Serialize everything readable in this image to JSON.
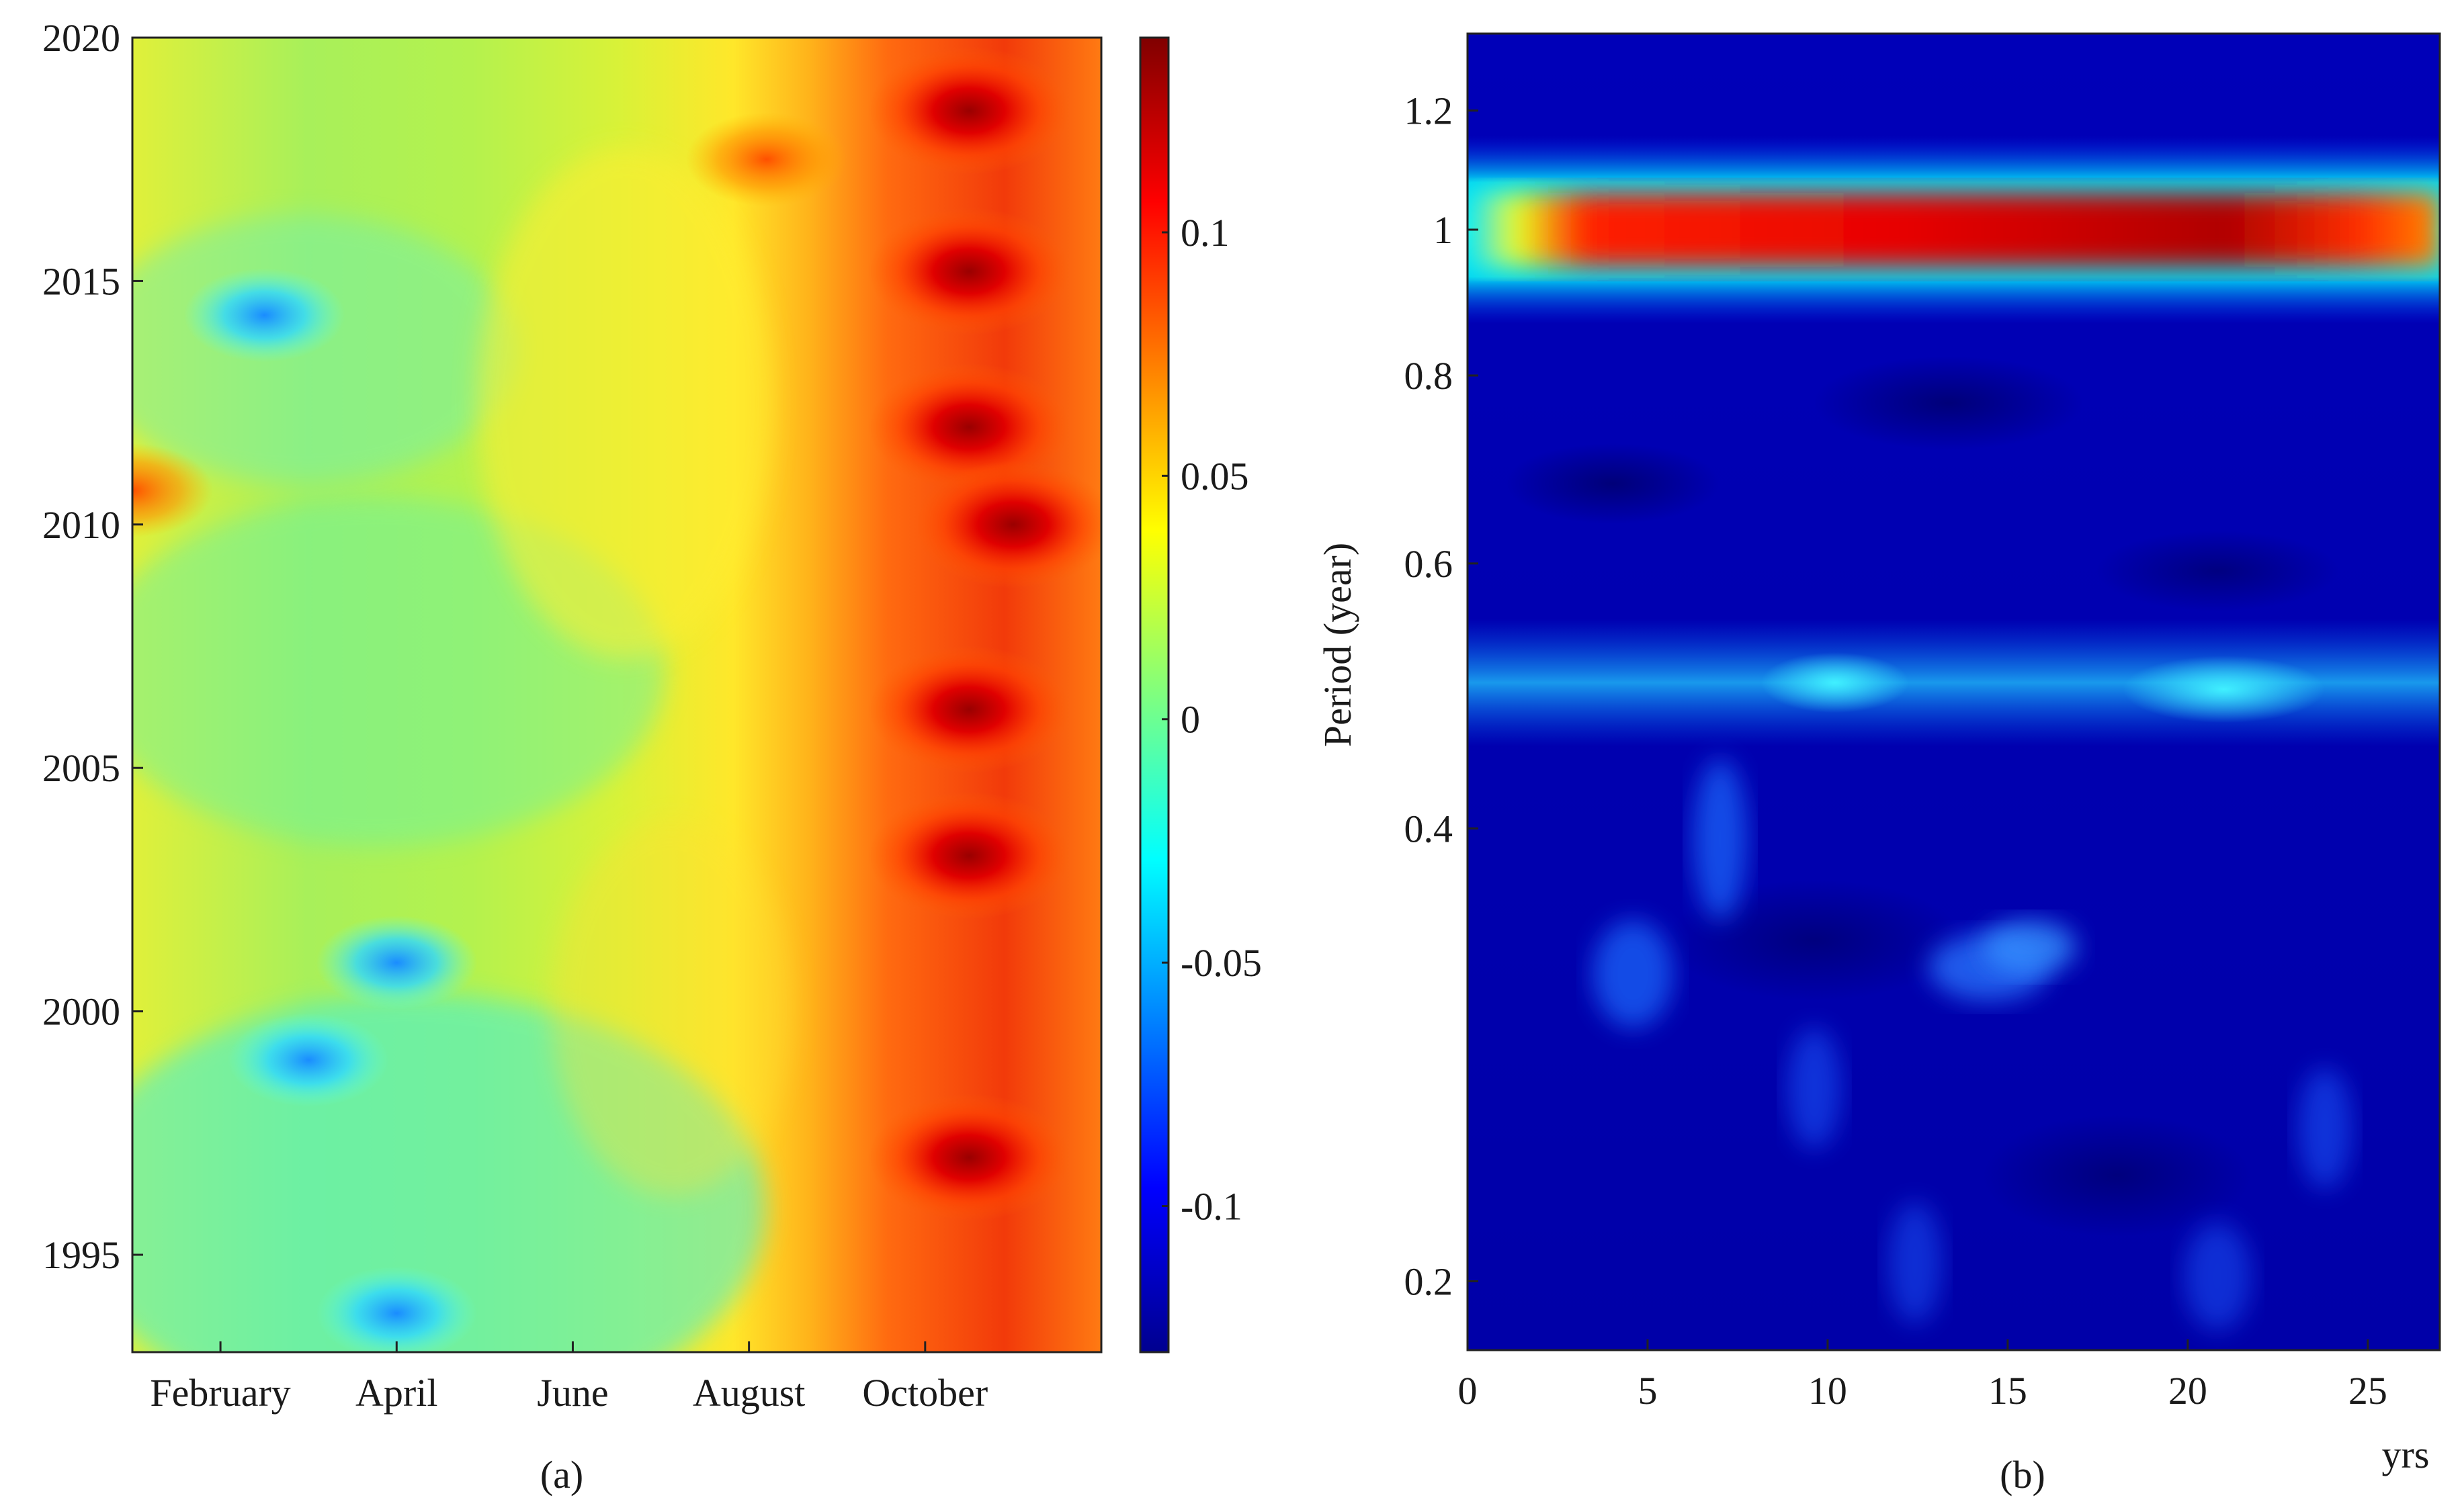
{
  "chart_data": [
    {
      "type": "heatmap",
      "panel_label": "(a)",
      "x_tick_labels": [
        "February",
        "April",
        "June",
        "August",
        "October"
      ],
      "x_tick_months": [
        2,
        4,
        6,
        8,
        10
      ],
      "xlim_months": [
        1,
        12
      ],
      "y_tick_labels": [
        "1995",
        "2000",
        "2005",
        "2010",
        "2015",
        "2020"
      ],
      "y_ticks": [
        1995,
        2000,
        2005,
        2010,
        2015,
        2020
      ],
      "ylim": [
        1993,
        2020
      ],
      "colorbar": {
        "range": [
          -0.13,
          0.14
        ],
        "tick_labels": [
          "-0.1",
          "-0.05",
          "0",
          "0.05",
          "0.1"
        ],
        "ticks": [
          -0.1,
          -0.05,
          0,
          0.05,
          0.1
        ]
      },
      "hotspots": [
        {
          "month": 10.5,
          "year": 2015.2,
          "value": 0.135
        },
        {
          "month": 10.5,
          "year": 2018.5,
          "value": 0.115
        },
        {
          "month": 10.5,
          "year": 2012.0,
          "value": 0.12
        },
        {
          "month": 11.0,
          "year": 2010.0,
          "value": 0.125
        },
        {
          "month": 10.5,
          "year": 2006.2,
          "value": 0.11
        },
        {
          "month": 10.5,
          "year": 2003.2,
          "value": 0.11
        },
        {
          "month": 10.5,
          "year": 1997.0,
          "value": 0.11
        },
        {
          "month": 1.0,
          "year": 2010.7,
          "value": 0.09
        },
        {
          "month": 8.2,
          "year": 2017.5,
          "value": 0.07
        },
        {
          "month": 3.0,
          "year": 1999.0,
          "value": -0.075
        },
        {
          "month": 4.0,
          "year": 1993.8,
          "value": -0.065
        },
        {
          "month": 4.0,
          "year": 2001.0,
          "value": -0.06
        },
        {
          "month": 2.5,
          "year": 2014.3,
          "value": -0.04
        }
      ]
    },
    {
      "type": "heatmap",
      "panel_label": "(b)",
      "xlabel_unit": "yrs",
      "ylabel": "Period (year)",
      "x_tick_labels": [
        "0",
        "5",
        "10",
        "15",
        "20",
        "25"
      ],
      "x_ticks": [
        0,
        5,
        10,
        15,
        20,
        25
      ],
      "xlim": [
        0,
        27
      ],
      "y_tick_labels": [
        "0.2",
        "0.4",
        "0.6",
        "0.8",
        "1",
        "1.2"
      ],
      "y_ticks": [
        0.2,
        0.4,
        0.6,
        0.8,
        1.0,
        1.2
      ],
      "ylim_log": [
        0.18,
        1.35
      ],
      "bands": [
        {
          "period": 1.0,
          "intensity": "high",
          "note": "annual cycle, strongest near x=21"
        },
        {
          "period": 0.5,
          "intensity": "moderate",
          "note": "semi-annual, brightest near x=10 and x=21"
        }
      ]
    }
  ]
}
